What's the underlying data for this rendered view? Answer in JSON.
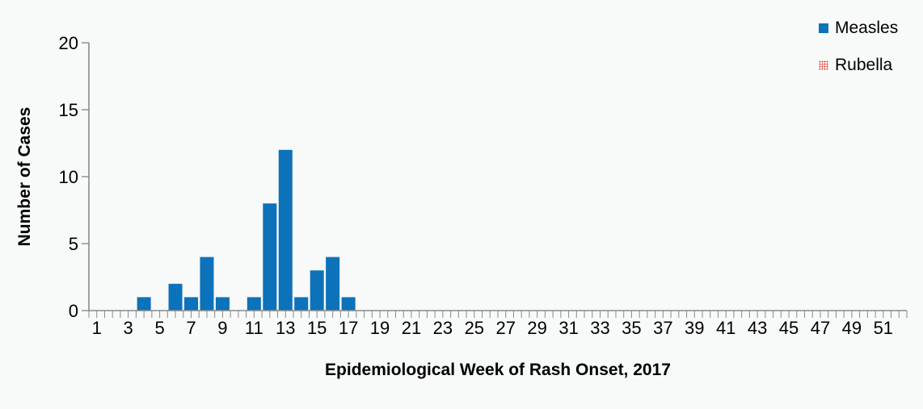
{
  "chart_data": {
    "type": "bar",
    "title": "",
    "xlabel": "Epidemiological Week of Rash Onset, 2017",
    "ylabel": "Number of Cases",
    "x": [
      1,
      2,
      3,
      4,
      5,
      6,
      7,
      8,
      9,
      10,
      11,
      12,
      13,
      14,
      15,
      16,
      17,
      18,
      19,
      20,
      21,
      22,
      23,
      24,
      25,
      26,
      27,
      28,
      29,
      30,
      31,
      32,
      33,
      34,
      35,
      36,
      37,
      38,
      39,
      40,
      41,
      42,
      43,
      44,
      45,
      46,
      47,
      48,
      49,
      50,
      51,
      52
    ],
    "x_tick_labels": [
      "1",
      "3",
      "5",
      "7",
      "9",
      "11",
      "13",
      "15",
      "17",
      "19",
      "21",
      "23",
      "25",
      "27",
      "29",
      "31",
      "33",
      "35",
      "37",
      "39",
      "41",
      "43",
      "45",
      "47",
      "49",
      "51"
    ],
    "series": [
      {
        "name": "Measles",
        "color": "#0c72ba",
        "pattern": "solid",
        "values": [
          0,
          0,
          0,
          1,
          0,
          2,
          1,
          4,
          1,
          0,
          1,
          8,
          12,
          1,
          3,
          4,
          1,
          0,
          0,
          0,
          0,
          0,
          0,
          0,
          0,
          0,
          0,
          0,
          0,
          0,
          0,
          0,
          0,
          0,
          0,
          0,
          0,
          0,
          0,
          0,
          0,
          0,
          0,
          0,
          0,
          0,
          0,
          0,
          0,
          0,
          0,
          0
        ]
      },
      {
        "name": "Rubella",
        "color": "#d92b28",
        "pattern": "dots",
        "values": [
          0,
          0,
          0,
          0,
          0,
          0,
          0,
          0,
          0,
          0,
          0,
          0,
          0,
          0,
          0,
          0,
          0,
          0,
          0,
          0,
          0,
          0,
          0,
          0,
          0,
          0,
          0,
          0,
          0,
          0,
          0,
          0,
          0,
          0,
          0,
          0,
          0,
          0,
          0,
          0,
          0,
          0,
          0,
          0,
          0,
          0,
          0,
          0,
          0,
          0,
          0,
          0
        ]
      }
    ],
    "ylim": [
      0,
      20
    ],
    "yticks": [
      0,
      5,
      10,
      15,
      20
    ],
    "grid": false,
    "legend_position": "top-right"
  },
  "colors": {
    "background": "#f8f9f9",
    "axis": "#8a8a8a",
    "text": "#000000",
    "measles_blue": "#0c72ba",
    "rubella_red": "#d92b28"
  }
}
